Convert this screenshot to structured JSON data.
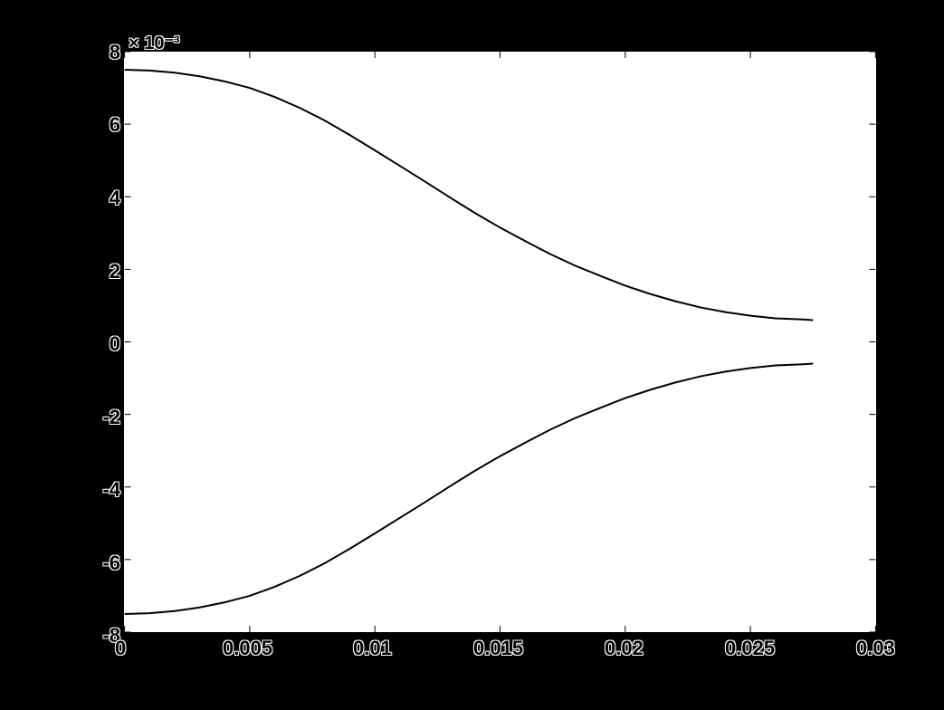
{
  "chart": {
    "type": "line",
    "background_color": "#000000",
    "plot_background_color": "#ffffff",
    "axis_color": "#000000",
    "line_color": "#000000",
    "line_width": 2,
    "tick_fontsize": 22,
    "exponent_label": "× 10⁻³",
    "exponent_fontsize": 20,
    "xlim": [
      0,
      0.03
    ],
    "ylim": [
      -8,
      8
    ],
    "xticks": [
      0,
      0.005,
      0.01,
      0.015,
      0.02,
      0.025,
      0.03
    ],
    "xtick_labels": [
      "0",
      "0.005",
      "0.01",
      "0.015",
      "0.02",
      "0.025",
      "0.03"
    ],
    "yticks": [
      -8,
      -6,
      -4,
      -2,
      0,
      2,
      4,
      6,
      8
    ],
    "ytick_labels": [
      "-8",
      "-6",
      "-4",
      "-2",
      "0",
      "2",
      "4",
      "6",
      "8"
    ],
    "series": [
      {
        "name": "upper_curve",
        "x": [
          0,
          0.001,
          0.002,
          0.003,
          0.004,
          0.005,
          0.006,
          0.007,
          0.008,
          0.009,
          0.01,
          0.011,
          0.012,
          0.013,
          0.014,
          0.015,
          0.016,
          0.017,
          0.018,
          0.019,
          0.02,
          0.021,
          0.022,
          0.023,
          0.024,
          0.025,
          0.026,
          0.027,
          0.0275
        ],
        "y": [
          7.5,
          7.48,
          7.42,
          7.32,
          7.18,
          7.0,
          6.75,
          6.45,
          6.1,
          5.7,
          5.28,
          4.85,
          4.42,
          3.98,
          3.55,
          3.15,
          2.78,
          2.42,
          2.1,
          1.82,
          1.55,
          1.32,
          1.12,
          0.95,
          0.82,
          0.72,
          0.65,
          0.62,
          0.6
        ]
      },
      {
        "name": "lower_curve",
        "x": [
          0,
          0.001,
          0.002,
          0.003,
          0.004,
          0.005,
          0.006,
          0.007,
          0.008,
          0.009,
          0.01,
          0.011,
          0.012,
          0.013,
          0.014,
          0.015,
          0.016,
          0.017,
          0.018,
          0.019,
          0.02,
          0.021,
          0.022,
          0.023,
          0.024,
          0.025,
          0.026,
          0.027,
          0.0275
        ],
        "y": [
          -7.5,
          -7.48,
          -7.42,
          -7.32,
          -7.18,
          -7.0,
          -6.75,
          -6.45,
          -6.1,
          -5.7,
          -5.28,
          -4.85,
          -4.42,
          -3.98,
          -3.55,
          -3.15,
          -2.78,
          -2.42,
          -2.1,
          -1.82,
          -1.55,
          -1.32,
          -1.12,
          -0.95,
          -0.82,
          -0.72,
          -0.65,
          -0.62,
          -0.6
        ]
      }
    ]
  }
}
